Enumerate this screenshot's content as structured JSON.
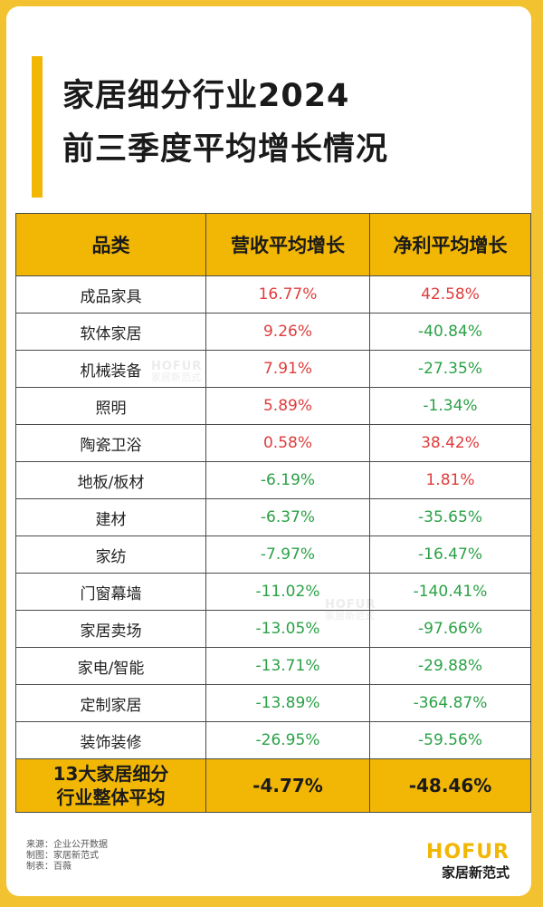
{
  "title_lines": [
    "家居细分行业2024",
    "前三季度平均增长情况"
  ],
  "chart_data": {
    "type": "table",
    "headers": [
      "品类",
      "营收平均增长",
      "净利平均增长"
    ],
    "rows": [
      {
        "category": "成品家具",
        "revenue": "16.77%",
        "profit": "42.58%"
      },
      {
        "category": "软体家居",
        "revenue": "9.26%",
        "profit": "-40.84%"
      },
      {
        "category": "机械装备",
        "revenue": "7.91%",
        "profit": "-27.35%"
      },
      {
        "category": "照明",
        "revenue": "5.89%",
        "profit": "-1.34%"
      },
      {
        "category": "陶瓷卫浴",
        "revenue": "0.58%",
        "profit": "38.42%"
      },
      {
        "category": "地板/板材",
        "revenue": "-6.19%",
        "profit": "1.81%"
      },
      {
        "category": "建材",
        "revenue": "-6.37%",
        "profit": "-35.65%"
      },
      {
        "category": "家纺",
        "revenue": "-7.97%",
        "profit": "-16.47%"
      },
      {
        "category": "门窗幕墙",
        "revenue": "-11.02%",
        "profit": "-140.41%"
      },
      {
        "category": "家居卖场",
        "revenue": "-13.05%",
        "profit": "-97.66%"
      },
      {
        "category": "家电/智能",
        "revenue": "-13.71%",
        "profit": "-29.88%"
      },
      {
        "category": "定制家居",
        "revenue": "-13.89%",
        "profit": "-364.87%"
      },
      {
        "category": "装饰装修",
        "revenue": "-26.95%",
        "profit": "-59.56%"
      }
    ],
    "total": {
      "label_lines": [
        "13大家居细分",
        "行业整体平均"
      ],
      "revenue": "-4.77%",
      "profit": "-48.46%"
    },
    "colors": {
      "positive": "#e03c3c",
      "negative": "#2aa146",
      "header": "#f2b705"
    }
  },
  "footer_notes": [
    "来源：企业公开数据",
    "制图：家居新范式",
    "制表：百薇"
  ],
  "logo": {
    "mark": "HOFUR",
    "sub": "家居新范式"
  },
  "watermark": {
    "mark": "HOFUR",
    "sub": "家居新范式"
  }
}
